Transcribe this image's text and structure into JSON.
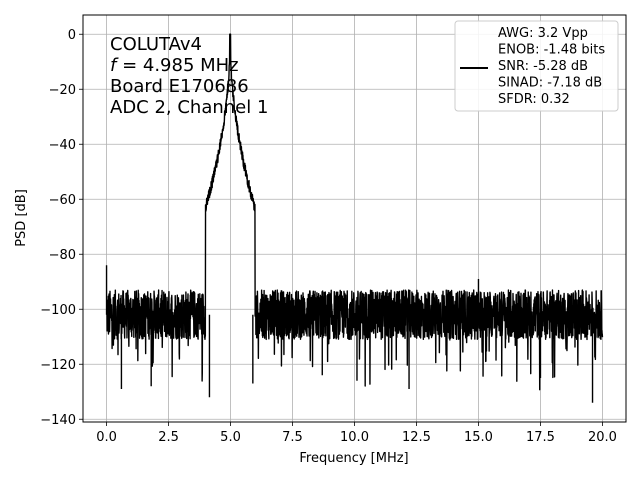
{
  "chart_data": {
    "type": "line",
    "xlabel": "Frequency [MHz]",
    "ylabel": "PSD [dB]",
    "xlim": [
      -0.95,
      20.95
    ],
    "ylim": [
      -141,
      7
    ],
    "xticks": [
      "0.0",
      "2.5",
      "5.0",
      "7.5",
      "10.0",
      "12.5",
      "15.0",
      "17.5",
      "20.0"
    ],
    "xtick_values": [
      0,
      2.5,
      5,
      7.5,
      10,
      12.5,
      15,
      17.5,
      20
    ],
    "yticks": [
      "0",
      "−20",
      "−40",
      "−60",
      "−80",
      "−100",
      "−120",
      "−140"
    ],
    "ytick_values": [
      0,
      -20,
      -40,
      -60,
      -80,
      -100,
      -120,
      -140
    ],
    "grid": true,
    "line_color": "#000000",
    "legend_position": "top-right",
    "annotation": [
      {
        "prefix": "",
        "italic": "",
        "text": "COLUTAv4"
      },
      {
        "prefix": "",
        "italic": "f",
        "text": " = 4.985 MHz"
      },
      {
        "prefix": "",
        "italic": "",
        "text": "Board E170686"
      },
      {
        "prefix": "",
        "italic": "",
        "text": "ADC 2, Channel 1"
      }
    ],
    "legend": [
      "AWG: 3.2 Vpp",
      "ENOB: -1.48 bits",
      "SNR: -5.28 dB",
      "SINAD: -7.18 dB",
      "SFDR: 0.32"
    ],
    "series": [
      {
        "noise_floor_db": -102,
        "peak": {
          "x": 4.985,
          "y": 0
        },
        "dips": [
          {
            "x": 0.6,
            "y": -129
          },
          {
            "x": 1.8,
            "y": -128
          },
          {
            "x": 4.15,
            "y": -132
          },
          {
            "x": 5.9,
            "y": -127
          },
          {
            "x": 12.2,
            "y": -129
          },
          {
            "x": 19.6,
            "y": -134
          },
          {
            "x": 17.5,
            "y": -125
          },
          {
            "x": 10.1,
            "y": -126
          },
          {
            "x": 8.7,
            "y": -124
          }
        ],
        "spurs": [
          {
            "x": 0.0,
            "y": -84
          },
          {
            "x": 15.0,
            "y": -89
          }
        ]
      }
    ]
  }
}
